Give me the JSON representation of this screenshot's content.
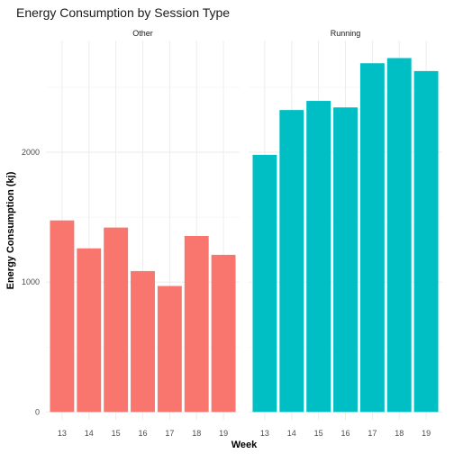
{
  "chart_data": {
    "type": "bar",
    "title": "Energy Consumption by Session Type",
    "xlabel": "Week",
    "ylabel": "Energy Consumption (kj)",
    "ylim": [
      -60,
      2860
    ],
    "y_ticks": [
      0,
      1000,
      2000
    ],
    "grid": true,
    "facets": [
      {
        "name": "Other",
        "color": "#F8766D",
        "categories": [
          "13",
          "14",
          "15",
          "16",
          "17",
          "18",
          "19"
        ],
        "values": [
          1475,
          1260,
          1420,
          1085,
          970,
          1355,
          1210
        ]
      },
      {
        "name": "Running",
        "color": "#00BFC4",
        "categories": [
          "13",
          "14",
          "15",
          "16",
          "17",
          "18",
          "19"
        ],
        "values": [
          1980,
          2325,
          2395,
          2345,
          2685,
          2725,
          2625
        ]
      }
    ]
  }
}
